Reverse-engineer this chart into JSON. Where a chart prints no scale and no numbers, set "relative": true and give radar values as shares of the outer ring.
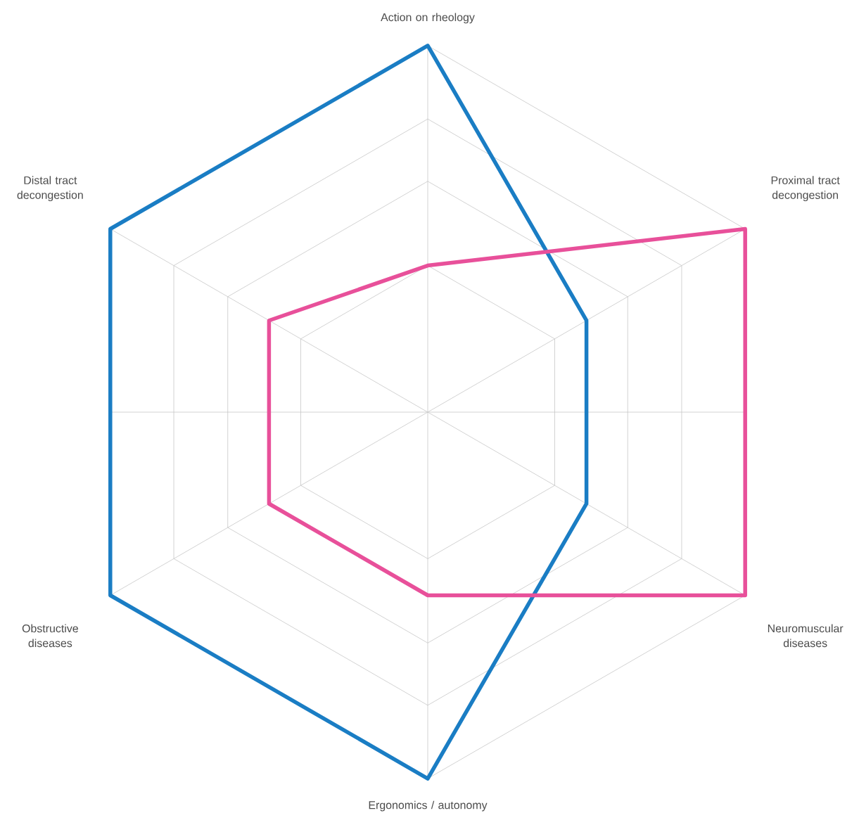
{
  "chart_data": {
    "type": "radar",
    "relative": true,
    "grid": true,
    "categories": [
      "Action on rheology",
      "Proximal tract decongestion",
      "Neuromuscular diseases",
      "Ergonomics / autonomy",
      "Obstructive diseases",
      "Distal tract decongestion"
    ],
    "series": [
      {
        "color": "#1a7dc4",
        "values": [
          1,
          0.5,
          0.5,
          1,
          1,
          1
        ]
      },
      {
        "color": "#e8509a",
        "values": [
          0.4,
          1,
          1,
          0.5,
          0.5,
          0.5
        ]
      }
    ]
  }
}
